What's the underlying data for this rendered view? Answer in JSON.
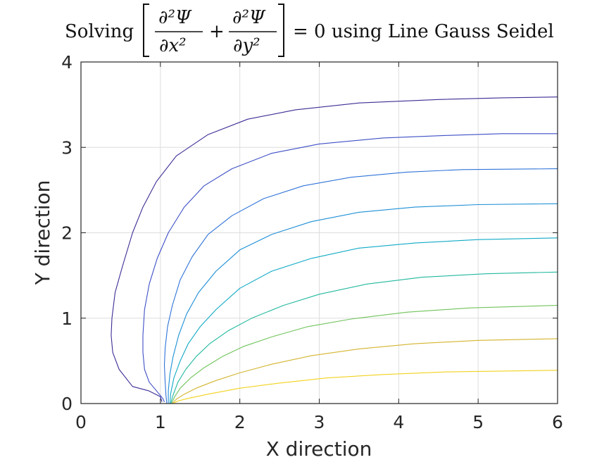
{
  "chart_data": {
    "type": "line",
    "title": {
      "prefix": "Solving",
      "term1_num": "∂²Ψ",
      "term1_den": "∂x²",
      "plus": "+",
      "term2_num": "∂²Ψ",
      "term2_den": "∂y²",
      "suffix": "= 0 using Line Gauss Seidel"
    },
    "xlabel": "X direction",
    "ylabel": "Y direction",
    "xlim": [
      0,
      6
    ],
    "ylim": [
      0,
      4
    ],
    "xticks": [
      0,
      1,
      2,
      3,
      4,
      5,
      6
    ],
    "yticks": [
      0,
      1,
      2,
      3,
      4
    ],
    "grid": true,
    "series": [
      {
        "color": "#3a2d94",
        "points": [
          [
            1.02,
            0.02
          ],
          [
            1.0,
            0.08
          ],
          [
            0.85,
            0.15
          ],
          [
            0.65,
            0.2
          ],
          [
            0.48,
            0.4
          ],
          [
            0.4,
            0.6
          ],
          [
            0.38,
            0.8
          ],
          [
            0.39,
            1.0
          ],
          [
            0.43,
            1.3
          ],
          [
            0.52,
            1.6
          ],
          [
            0.65,
            2.0
          ],
          [
            0.78,
            2.3
          ],
          [
            0.95,
            2.6
          ],
          [
            1.2,
            2.9
          ],
          [
            1.6,
            3.15
          ],
          [
            2.1,
            3.33
          ],
          [
            2.7,
            3.44
          ],
          [
            3.5,
            3.52
          ],
          [
            4.5,
            3.56
          ],
          [
            5.3,
            3.58
          ],
          [
            6.0,
            3.59
          ]
        ]
      },
      {
        "color": "#3d4fc5",
        "points": [
          [
            1.05,
            0.02
          ],
          [
            1.03,
            0.06
          ],
          [
            0.95,
            0.15
          ],
          [
            0.86,
            0.25
          ],
          [
            0.8,
            0.4
          ],
          [
            0.78,
            0.6
          ],
          [
            0.78,
            0.8
          ],
          [
            0.8,
            1.1
          ],
          [
            0.86,
            1.4
          ],
          [
            0.96,
            1.7
          ],
          [
            1.1,
            2.0
          ],
          [
            1.3,
            2.3
          ],
          [
            1.55,
            2.55
          ],
          [
            1.9,
            2.75
          ],
          [
            2.4,
            2.93
          ],
          [
            3.0,
            3.04
          ],
          [
            3.8,
            3.11
          ],
          [
            4.6,
            3.14
          ],
          [
            5.3,
            3.16
          ],
          [
            6.0,
            3.16
          ]
        ]
      },
      {
        "color": "#2f73d8",
        "points": [
          [
            1.08,
            0.0
          ],
          [
            1.07,
            0.1
          ],
          [
            1.06,
            0.25
          ],
          [
            1.05,
            0.45
          ],
          [
            1.06,
            0.65
          ],
          [
            1.09,
            0.9
          ],
          [
            1.15,
            1.15
          ],
          [
            1.25,
            1.45
          ],
          [
            1.4,
            1.72
          ],
          [
            1.6,
            1.98
          ],
          [
            1.9,
            2.2
          ],
          [
            2.3,
            2.4
          ],
          [
            2.8,
            2.55
          ],
          [
            3.4,
            2.65
          ],
          [
            4.1,
            2.71
          ],
          [
            4.8,
            2.74
          ],
          [
            6.0,
            2.75
          ]
        ]
      },
      {
        "color": "#1d8fd6",
        "points": [
          [
            1.1,
            0.0
          ],
          [
            1.1,
            0.15
          ],
          [
            1.12,
            0.35
          ],
          [
            1.16,
            0.55
          ],
          [
            1.23,
            0.8
          ],
          [
            1.33,
            1.05
          ],
          [
            1.48,
            1.3
          ],
          [
            1.7,
            1.55
          ],
          [
            2.0,
            1.8
          ],
          [
            2.4,
            1.98
          ],
          [
            2.9,
            2.13
          ],
          [
            3.5,
            2.24
          ],
          [
            4.2,
            2.3
          ],
          [
            5.0,
            2.33
          ],
          [
            6.0,
            2.34
          ]
        ]
      },
      {
        "color": "#10aac6",
        "points": [
          [
            1.12,
            0.0
          ],
          [
            1.13,
            0.12
          ],
          [
            1.17,
            0.3
          ],
          [
            1.25,
            0.5
          ],
          [
            1.35,
            0.7
          ],
          [
            1.5,
            0.9
          ],
          [
            1.7,
            1.1
          ],
          [
            2.0,
            1.35
          ],
          [
            2.4,
            1.55
          ],
          [
            2.9,
            1.7
          ],
          [
            3.5,
            1.82
          ],
          [
            4.2,
            1.88
          ],
          [
            5.0,
            1.92
          ],
          [
            6.0,
            1.94
          ]
        ]
      },
      {
        "color": "#21b89e",
        "points": [
          [
            1.13,
            0.0
          ],
          [
            1.16,
            0.1
          ],
          [
            1.22,
            0.25
          ],
          [
            1.32,
            0.4
          ],
          [
            1.45,
            0.55
          ],
          [
            1.62,
            0.7
          ],
          [
            1.85,
            0.85
          ],
          [
            2.15,
            1.0
          ],
          [
            2.55,
            1.15
          ],
          [
            3.0,
            1.28
          ],
          [
            3.6,
            1.4
          ],
          [
            4.3,
            1.48
          ],
          [
            5.1,
            1.52
          ],
          [
            6.0,
            1.54
          ]
        ]
      },
      {
        "color": "#6fc35a",
        "points": [
          [
            1.14,
            0.0
          ],
          [
            1.18,
            0.08
          ],
          [
            1.25,
            0.18
          ],
          [
            1.38,
            0.3
          ],
          [
            1.55,
            0.42
          ],
          [
            1.78,
            0.55
          ],
          [
            2.05,
            0.67
          ],
          [
            2.4,
            0.78
          ],
          [
            2.85,
            0.9
          ],
          [
            3.4,
            0.99
          ],
          [
            4.1,
            1.07
          ],
          [
            4.9,
            1.12
          ],
          [
            6.0,
            1.15
          ]
        ]
      },
      {
        "color": "#d4b42e",
        "points": [
          [
            1.15,
            0.0
          ],
          [
            1.2,
            0.05
          ],
          [
            1.3,
            0.11
          ],
          [
            1.45,
            0.18
          ],
          [
            1.7,
            0.27
          ],
          [
            2.0,
            0.36
          ],
          [
            2.4,
            0.46
          ],
          [
            2.9,
            0.56
          ],
          [
            3.5,
            0.64
          ],
          [
            4.2,
            0.7
          ],
          [
            5.0,
            0.74
          ],
          [
            6.0,
            0.76
          ]
        ]
      },
      {
        "color": "#f2d21e",
        "points": [
          [
            1.16,
            0.0
          ],
          [
            1.22,
            0.03
          ],
          [
            1.35,
            0.06
          ],
          [
            1.6,
            0.11
          ],
          [
            2.0,
            0.18
          ],
          [
            2.5,
            0.24
          ],
          [
            3.1,
            0.3
          ],
          [
            3.8,
            0.34
          ],
          [
            4.6,
            0.37
          ],
          [
            5.3,
            0.38
          ],
          [
            6.0,
            0.39
          ]
        ]
      },
      {
        "color": "#f9e814",
        "points": [
          [
            1.05,
            0.0
          ],
          [
            6.0,
            0.0
          ]
        ]
      }
    ]
  }
}
